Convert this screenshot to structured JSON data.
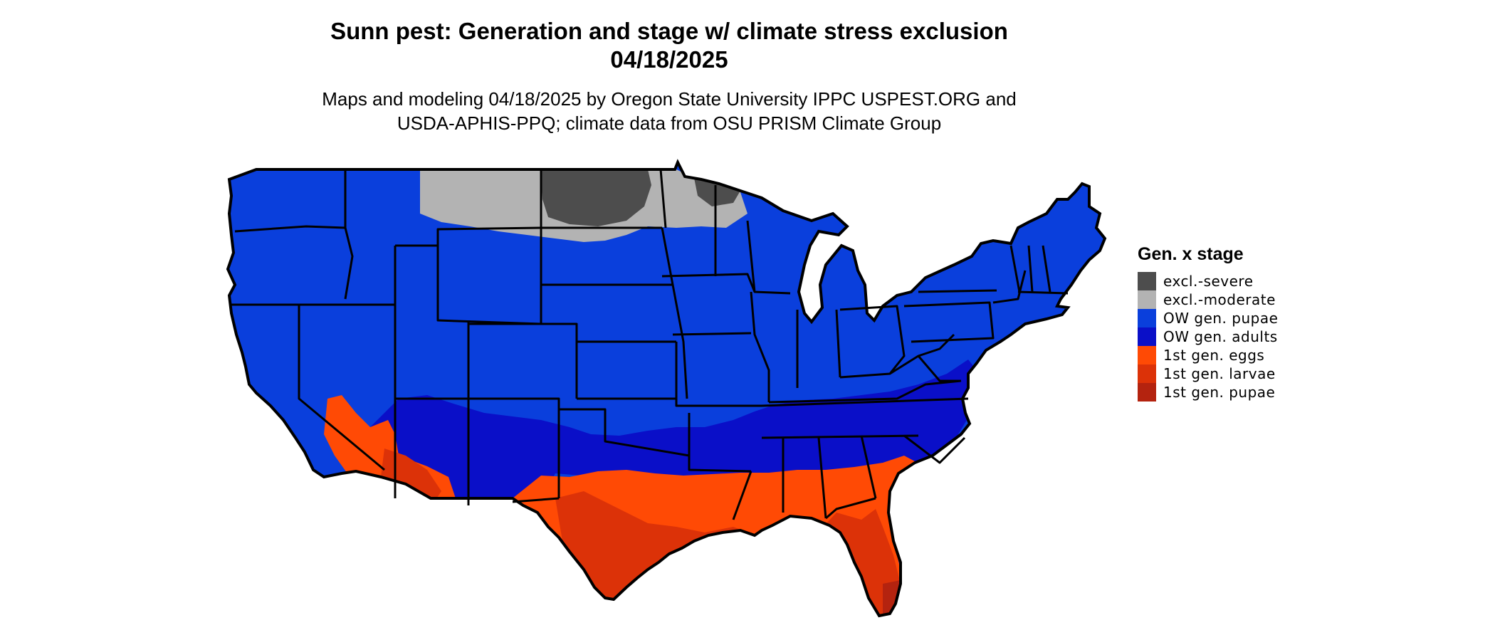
{
  "header": {
    "title_line1": "Sunn pest: Generation and stage w/ climate stress exclusion",
    "title_line2": "04/18/2025",
    "subtitle_line1": "Maps and modeling 04/18/2025 by Oregon State University IPPC USPEST.ORG and",
    "subtitle_line2": "USDA-APHIS-PPQ; climate data from OSU PRISM Climate Group"
  },
  "legend": {
    "title": "Gen. x stage",
    "items": [
      {
        "label": "excl.-severe",
        "color": "#4d4d4d"
      },
      {
        "label": "excl.-moderate",
        "color": "#b3b3b3"
      },
      {
        "label": "OW gen. pupae",
        "color": "#0a3fdc"
      },
      {
        "label": "OW gen. adults",
        "color": "#0a0fc8"
      },
      {
        "label": "1st gen. eggs",
        "color": "#ff4a05"
      },
      {
        "label": "1st gen. larvae",
        "color": "#dc3208"
      },
      {
        "label": "1st gen. pupae",
        "color": "#b4230f"
      }
    ]
  },
  "colors": {
    "ow_pupae": "#0a3fdc",
    "ow_adults": "#0a0fc8",
    "eggs": "#ff4a05",
    "larvae": "#dc3208",
    "pupae": "#b4230f",
    "excl_severe": "#4d4d4d",
    "excl_moderate": "#b3b3b3",
    "borders": "#000000"
  }
}
